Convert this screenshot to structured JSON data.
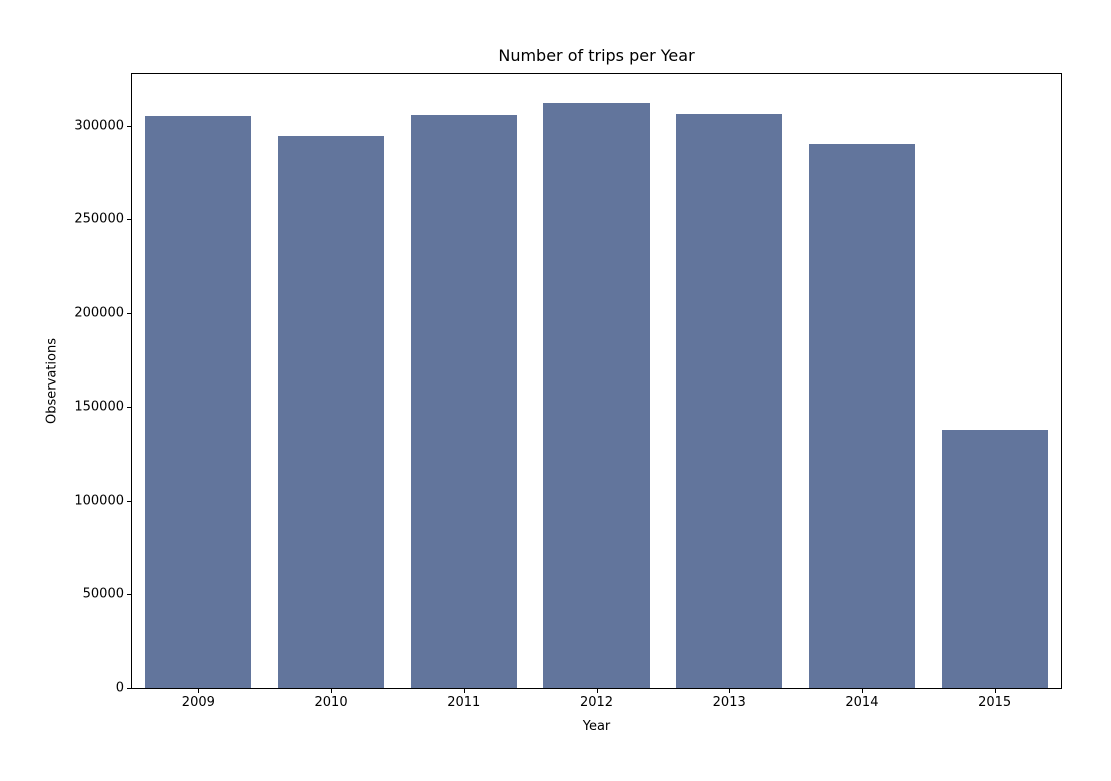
{
  "figure": {
    "background": "#ffffff",
    "spine_color": "#000000",
    "text_color": "#000000"
  },
  "chart_data": {
    "type": "bar",
    "title": "Number of trips per Year",
    "xlabel": "Year",
    "ylabel": "Observations",
    "categories": [
      "2009",
      "2010",
      "2011",
      "2012",
      "2013",
      "2014",
      "2015"
    ],
    "values": [
      305000,
      294500,
      305500,
      312000,
      306000,
      290500,
      137500
    ],
    "yticks": [
      0,
      50000,
      100000,
      150000,
      200000,
      250000,
      300000
    ],
    "ylim": [
      0,
      327600
    ],
    "bar_color": "#62759c",
    "bar_width_fraction": 0.8,
    "grid": false,
    "legend_position": "none"
  }
}
